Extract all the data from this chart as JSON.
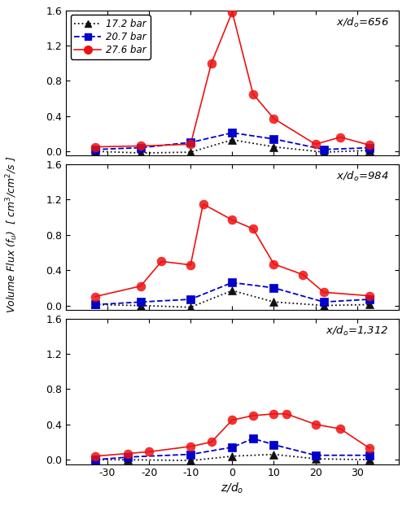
{
  "title_top": "x/d$_o$=656",
  "title_mid": "x/d$_o$=984",
  "title_bot": "x/d$_o$=1,312",
  "xlabel": "z/d$_o$",
  "ylabel": "Volume Flux ($f_u$)  [ cm$^3$/cm$^2$/s ]",
  "xlim": [
    -40,
    40
  ],
  "ylim": [
    -0.05,
    1.6
  ],
  "yticks": [
    0.0,
    0.4,
    0.8,
    1.2,
    1.6
  ],
  "xticks": [
    -40,
    -30,
    -20,
    -10,
    0,
    10,
    20,
    30,
    40
  ],
  "panel1": {
    "black_z": [
      -33,
      -22,
      -10,
      0,
      10,
      22,
      33
    ],
    "black_v": [
      0.0,
      -0.02,
      -0.01,
      0.13,
      0.05,
      -0.01,
      0.01
    ],
    "blue_z": [
      -33,
      -22,
      -10,
      0,
      10,
      22,
      33
    ],
    "blue_v": [
      0.02,
      0.04,
      0.1,
      0.21,
      0.14,
      0.02,
      0.04
    ],
    "red_z": [
      -33,
      -22,
      -10,
      -5,
      0,
      5,
      10,
      20,
      26,
      33
    ],
    "red_v": [
      0.05,
      0.06,
      0.08,
      1.0,
      1.58,
      0.65,
      0.37,
      0.08,
      0.16,
      0.07
    ]
  },
  "panel2": {
    "black_z": [
      -33,
      -22,
      -10,
      0,
      10,
      22,
      33
    ],
    "black_v": [
      0.01,
      0.0,
      -0.02,
      0.17,
      0.04,
      0.0,
      0.01
    ],
    "blue_z": [
      -33,
      -22,
      -10,
      0,
      10,
      22,
      33
    ],
    "blue_v": [
      0.01,
      0.04,
      0.07,
      0.26,
      0.2,
      0.04,
      0.07
    ],
    "red_z": [
      -33,
      -22,
      -17,
      -10,
      -7,
      0,
      5,
      10,
      17,
      22,
      33
    ],
    "red_v": [
      0.1,
      0.22,
      0.5,
      0.46,
      1.15,
      0.97,
      0.87,
      0.47,
      0.35,
      0.15,
      0.11
    ]
  },
  "panel3": {
    "black_z": [
      -33,
      -25,
      -10,
      0,
      10,
      20,
      33
    ],
    "black_v": [
      0.0,
      0.0,
      -0.01,
      0.04,
      0.06,
      0.01,
      0.0
    ],
    "blue_z": [
      -33,
      -25,
      -10,
      0,
      5,
      10,
      20,
      33
    ],
    "blue_v": [
      0.0,
      0.03,
      0.06,
      0.14,
      0.24,
      0.17,
      0.05,
      0.05
    ],
    "red_z": [
      -33,
      -25,
      -20,
      -10,
      -5,
      0,
      5,
      10,
      13,
      20,
      26,
      33
    ],
    "red_v": [
      0.04,
      0.07,
      0.09,
      0.15,
      0.2,
      0.45,
      0.5,
      0.52,
      0.52,
      0.4,
      0.35,
      0.13
    ]
  },
  "black_color": "#111111",
  "blue_color": "#0000cc",
  "red_color": "#ee1111"
}
